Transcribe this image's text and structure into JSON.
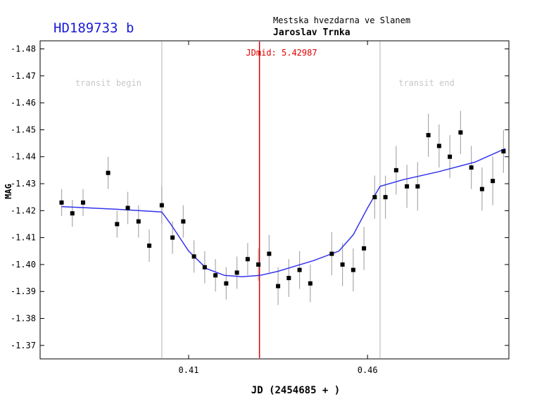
{
  "title": "HD189733 b",
  "observatory": "Mestska hvezdarna ve Slanem",
  "observer": "Jaroslav Trnka",
  "colors": {
    "title": "#1a1ad9",
    "fit_line": "#3333ee",
    "mid_line": "#dd0000",
    "transit_line": "#cccccc",
    "transit_text": "#c8c8c8",
    "points": "#000000",
    "errorbars": "#aaaaaa"
  },
  "chart_data": {
    "type": "scatter",
    "xlabel": "JD (2454685 + )",
    "ylabel": "MAG",
    "xlim": [
      0.3685,
      0.4995
    ],
    "ylim": [
      -1.365,
      -1.483
    ],
    "y_reversed": true,
    "x_ticks": [
      0.41,
      0.46
    ],
    "x_tick_labels": [
      "0.41",
      "0.46"
    ],
    "y_ticks": [
      -1.48,
      -1.47,
      -1.46,
      -1.45,
      -1.44,
      -1.43,
      -1.42,
      -1.41,
      -1.4,
      -1.39,
      -1.38,
      -1.37
    ],
    "y_tick_labels": [
      "-1.48",
      "-1.47",
      "-1.46",
      "-1.45",
      "-1.44",
      "-1.43",
      "-1.42",
      "-1.41",
      "-1.40",
      "-1.39",
      "-1.38",
      "-1.37"
    ],
    "grid": false,
    "annotations": {
      "jd_mid_label": "JDmid: 5.42987",
      "jd_mid_x": 0.4298,
      "transit_begin_label": "transit begin",
      "transit_begin_x": 0.4025,
      "transit_end_label": "transit end",
      "transit_end_x": 0.4635
    },
    "points": [
      {
        "x": 0.3745,
        "y": -1.423,
        "err": 0.005
      },
      {
        "x": 0.3775,
        "y": -1.419,
        "err": 0.005
      },
      {
        "x": 0.3805,
        "y": -1.423,
        "err": 0.005
      },
      {
        "x": 0.3875,
        "y": -1.434,
        "err": 0.006
      },
      {
        "x": 0.39,
        "y": -1.415,
        "err": 0.005
      },
      {
        "x": 0.393,
        "y": -1.421,
        "err": 0.006
      },
      {
        "x": 0.396,
        "y": -1.416,
        "err": 0.006
      },
      {
        "x": 0.399,
        "y": -1.407,
        "err": 0.006
      },
      {
        "x": 0.4025,
        "y": -1.422,
        "err": 0.007
      },
      {
        "x": 0.4055,
        "y": -1.41,
        "err": 0.006
      },
      {
        "x": 0.4085,
        "y": -1.416,
        "err": 0.006
      },
      {
        "x": 0.4115,
        "y": -1.403,
        "err": 0.006
      },
      {
        "x": 0.4145,
        "y": -1.399,
        "err": 0.006
      },
      {
        "x": 0.4175,
        "y": -1.396,
        "err": 0.006
      },
      {
        "x": 0.4205,
        "y": -1.393,
        "err": 0.006
      },
      {
        "x": 0.4235,
        "y": -1.397,
        "err": 0.006
      },
      {
        "x": 0.4265,
        "y": -1.402,
        "err": 0.006
      },
      {
        "x": 0.4295,
        "y": -1.4,
        "err": 0.006
      },
      {
        "x": 0.4325,
        "y": -1.404,
        "err": 0.007
      },
      {
        "x": 0.435,
        "y": -1.392,
        "err": 0.007
      },
      {
        "x": 0.438,
        "y": -1.395,
        "err": 0.007
      },
      {
        "x": 0.441,
        "y": -1.398,
        "err": 0.007
      },
      {
        "x": 0.444,
        "y": -1.393,
        "err": 0.007
      },
      {
        "x": 0.45,
        "y": -1.404,
        "err": 0.008
      },
      {
        "x": 0.453,
        "y": -1.4,
        "err": 0.008
      },
      {
        "x": 0.456,
        "y": -1.398,
        "err": 0.008
      },
      {
        "x": 0.459,
        "y": -1.406,
        "err": 0.008
      },
      {
        "x": 0.462,
        "y": -1.425,
        "err": 0.008
      },
      {
        "x": 0.465,
        "y": -1.425,
        "err": 0.008
      },
      {
        "x": 0.468,
        "y": -1.435,
        "err": 0.009
      },
      {
        "x": 0.471,
        "y": -1.429,
        "err": 0.008
      },
      {
        "x": 0.474,
        "y": -1.429,
        "err": 0.009
      },
      {
        "x": 0.477,
        "y": -1.448,
        "err": 0.008
      },
      {
        "x": 0.48,
        "y": -1.444,
        "err": 0.008
      },
      {
        "x": 0.483,
        "y": -1.44,
        "err": 0.008
      },
      {
        "x": 0.486,
        "y": -1.449,
        "err": 0.008
      },
      {
        "x": 0.489,
        "y": -1.436,
        "err": 0.008
      },
      {
        "x": 0.492,
        "y": -1.428,
        "err": 0.008
      },
      {
        "x": 0.495,
        "y": -1.431,
        "err": 0.009
      },
      {
        "x": 0.498,
        "y": -1.442,
        "err": 0.008
      }
    ],
    "fit_line": [
      {
        "x": 0.3745,
        "y": -1.4215
      },
      {
        "x": 0.39,
        "y": -1.4205
      },
      {
        "x": 0.4025,
        "y": -1.4195
      },
      {
        "x": 0.405,
        "y": -1.415
      },
      {
        "x": 0.41,
        "y": -1.405
      },
      {
        "x": 0.415,
        "y": -1.3985
      },
      {
        "x": 0.42,
        "y": -1.396
      },
      {
        "x": 0.425,
        "y": -1.3955
      },
      {
        "x": 0.43,
        "y": -1.396
      },
      {
        "x": 0.435,
        "y": -1.3975
      },
      {
        "x": 0.44,
        "y": -1.3995
      },
      {
        "x": 0.445,
        "y": -1.4015
      },
      {
        "x": 0.452,
        "y": -1.405
      },
      {
        "x": 0.456,
        "y": -1.411
      },
      {
        "x": 0.46,
        "y": -1.421
      },
      {
        "x": 0.4635,
        "y": -1.429
      },
      {
        "x": 0.47,
        "y": -1.4315
      },
      {
        "x": 0.48,
        "y": -1.4345
      },
      {
        "x": 0.49,
        "y": -1.438
      },
      {
        "x": 0.4985,
        "y": -1.443
      }
    ]
  }
}
